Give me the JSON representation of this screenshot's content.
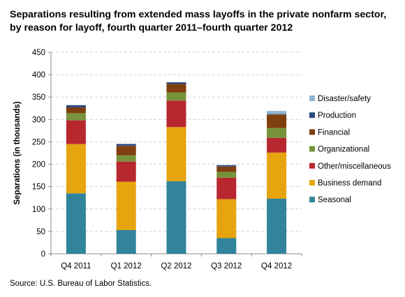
{
  "title_line1": "Separations resulting from extended mass layoffs in the private nonfarm sector,",
  "title_line2": "by reason for layoff, fourth quarter 2011–fourth quarter 2012",
  "source": "Source: U.S. Bureau of Labor Statistics.",
  "chart_data": {
    "type": "bar",
    "stacked": true,
    "categories": [
      "Q4 2011",
      "Q1 2012",
      "Q2 2012",
      "Q3 2012",
      "Q4 2012"
    ],
    "ylabel": "Separations (in thousands)",
    "xlabel": "",
    "ylim": [
      0,
      450
    ],
    "yticks": [
      0,
      50,
      100,
      150,
      200,
      250,
      300,
      350,
      400,
      450
    ],
    "grid": true,
    "legend_position": "right",
    "series": [
      {
        "name": "Seasonal",
        "color": "#31849b",
        "values": [
          135,
          53,
          162,
          35,
          123
        ]
      },
      {
        "name": "Business demand",
        "color": "#e6a40f",
        "values": [
          110,
          108,
          121,
          87,
          103
        ]
      },
      {
        "name": "Other/miscellaneous",
        "color": "#b8272e",
        "values": [
          53,
          45,
          59,
          48,
          33
        ]
      },
      {
        "name": "Organizational",
        "color": "#77933c",
        "values": [
          16,
          14,
          18,
          13,
          22
        ]
      },
      {
        "name": "Financial",
        "color": "#7f3f0e",
        "values": [
          13,
          21,
          19,
          12,
          30
        ]
      },
      {
        "name": "Production",
        "color": "#2f4a7f",
        "values": [
          5,
          4,
          4,
          3,
          1
        ]
      },
      {
        "name": "Disaster/safety",
        "color": "#8fb4cd",
        "values": [
          0,
          1,
          0,
          0,
          7
        ]
      }
    ]
  }
}
